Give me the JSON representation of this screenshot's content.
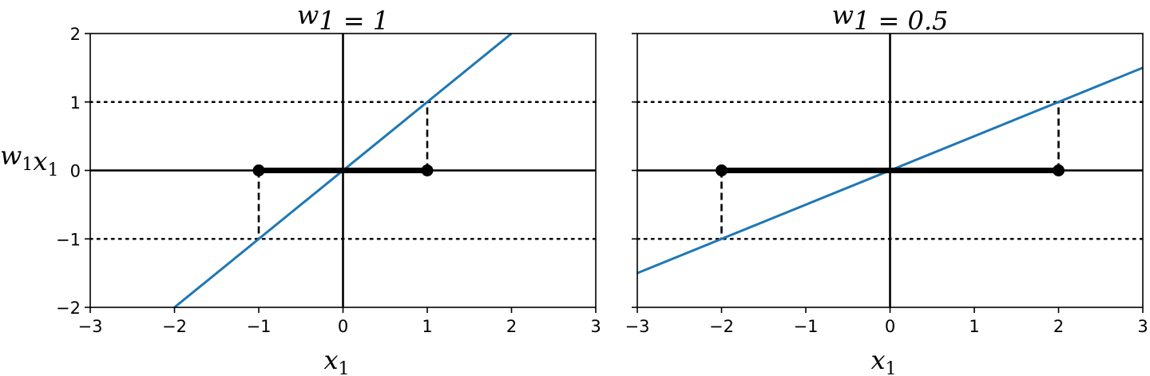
{
  "chart_data": [
    {
      "type": "line",
      "title": "w₁ = 1",
      "xlabel": "x₁",
      "ylabel": "w₁x₁",
      "xlim": [
        -3,
        3
      ],
      "ylim": [
        -2,
        2
      ],
      "xticks": [
        -3,
        -2,
        -1,
        0,
        1,
        2,
        3
      ],
      "xtick_labels": [
        "−3",
        "−2",
        "−1",
        "0",
        "1",
        "2",
        "3"
      ],
      "yticks": [
        -2,
        -1,
        0,
        1,
        2
      ],
      "ytick_labels": [
        "−2",
        "−1",
        "0",
        "1",
        "2"
      ],
      "series": [
        {
          "type": "line",
          "x": [
            -2,
            2
          ],
          "y": [
            -2,
            2
          ],
          "color": "#1f77b4"
        }
      ],
      "hlines_dotted": [
        -1,
        1
      ],
      "segment_thick": {
        "x": [
          -1,
          1
        ],
        "y": 0
      },
      "points": [
        {
          "x": -1,
          "y": 0
        },
        {
          "x": 1,
          "y": 0
        }
      ],
      "dashed_verticals": [
        {
          "x": -1,
          "y": [
            0,
            -1
          ]
        },
        {
          "x": 1,
          "y": [
            0,
            1
          ]
        }
      ],
      "grid": false
    },
    {
      "type": "line",
      "title": "w₁ = 0.5",
      "xlabel": "x₁",
      "ylabel": "",
      "xlim": [
        -3,
        3
      ],
      "ylim": [
        -2,
        2
      ],
      "xticks": [
        -3,
        -2,
        -1,
        0,
        1,
        2,
        3
      ],
      "xtick_labels": [
        "−3",
        "−2",
        "−1",
        "0",
        "1",
        "2",
        "3"
      ],
      "yticks": [
        -2,
        -1,
        0,
        1,
        2
      ],
      "ytick_labels": [],
      "series": [
        {
          "type": "line",
          "x": [
            -3,
            3
          ],
          "y": [
            -1.5,
            1.5
          ],
          "color": "#1f77b4"
        }
      ],
      "hlines_dotted": [
        -1,
        1
      ],
      "segment_thick": {
        "x": [
          -2,
          2
        ],
        "y": 0
      },
      "points": [
        {
          "x": -2,
          "y": 0
        },
        {
          "x": 2,
          "y": 0
        }
      ],
      "dashed_verticals": [
        {
          "x": -2,
          "y": [
            0,
            -1
          ]
        },
        {
          "x": 2,
          "y": [
            0,
            1
          ]
        }
      ],
      "grid": false
    }
  ]
}
